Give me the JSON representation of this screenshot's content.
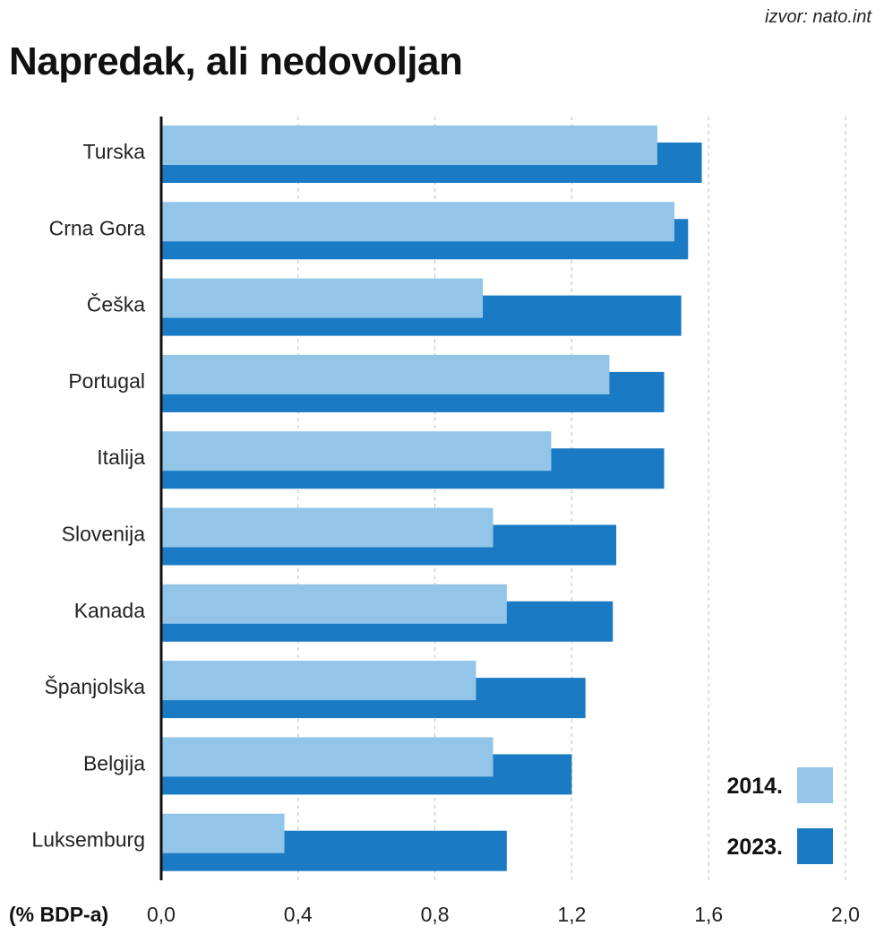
{
  "header": {
    "source": "izvor: nato.int",
    "title": "Napredak, ali nedovoljan"
  },
  "chart_data": {
    "type": "bar",
    "orientation": "horizontal",
    "title": "Napredak, ali nedovoljan",
    "xlabel": "(% BDP-a)",
    "ylabel": "",
    "xlim": [
      0,
      2.0
    ],
    "xticks": [
      0,
      0.4,
      0.8,
      1.2,
      1.6,
      2.0
    ],
    "xtick_labels": [
      "0,0",
      "0,4",
      "0,8",
      "1,2",
      "1,6",
      "2,0"
    ],
    "grid": "vertical dashed",
    "legend_position": "bottom-right",
    "categories": [
      "Turska",
      "Crna Gora",
      "Češka",
      "Portugal",
      "Italija",
      "Slovenija",
      "Kanada",
      "Španjolska",
      "Belgija",
      "Luksemburg"
    ],
    "series": [
      {
        "name": "2014.",
        "color": "#92c5e8",
        "values": [
          1.45,
          1.5,
          0.94,
          1.31,
          1.14,
          0.97,
          1.01,
          0.92,
          0.97,
          0.36
        ]
      },
      {
        "name": "2023.",
        "color": "#1a7bc4",
        "values": [
          1.58,
          1.54,
          1.52,
          1.47,
          1.47,
          1.33,
          1.32,
          1.24,
          1.2,
          1.01
        ]
      }
    ]
  }
}
